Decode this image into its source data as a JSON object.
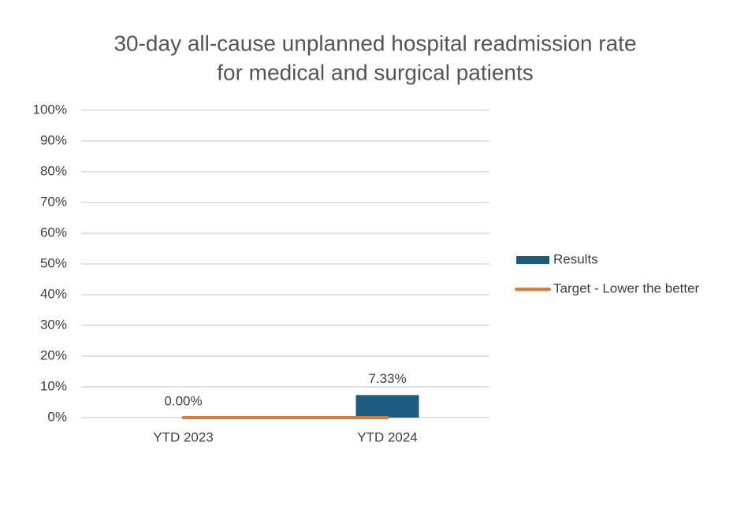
{
  "chart_data": {
    "type": "bar",
    "title": [
      "30-day all-cause unplanned hospital readmission rate",
      "for medical and surgical patients"
    ],
    "categories": [
      "YTD 2023",
      "YTD 2024"
    ],
    "series": [
      {
        "name": "Results",
        "type": "bar",
        "color": "#1b5c80",
        "values": [
          0,
          7.33
        ],
        "value_labels": [
          "0.00%",
          "7.33%"
        ]
      },
      {
        "name": "Target - Lower the better",
        "type": "line",
        "color": "#e07a34",
        "values": [
          0,
          0
        ]
      }
    ],
    "ylim": [
      0,
      100
    ],
    "yticks": [
      {
        "value": 0,
        "label": "0%"
      },
      {
        "value": 10,
        "label": "10%"
      },
      {
        "value": 20,
        "label": "20%"
      },
      {
        "value": 30,
        "label": "30%"
      },
      {
        "value": 40,
        "label": "40%"
      },
      {
        "value": 50,
        "label": "50%"
      },
      {
        "value": 60,
        "label": "60%"
      },
      {
        "value": 70,
        "label": "70%"
      },
      {
        "value": 80,
        "label": "80%"
      },
      {
        "value": 90,
        "label": "90%"
      },
      {
        "value": 100,
        "label": "100%"
      }
    ],
    "grid": true,
    "legend": "right"
  }
}
